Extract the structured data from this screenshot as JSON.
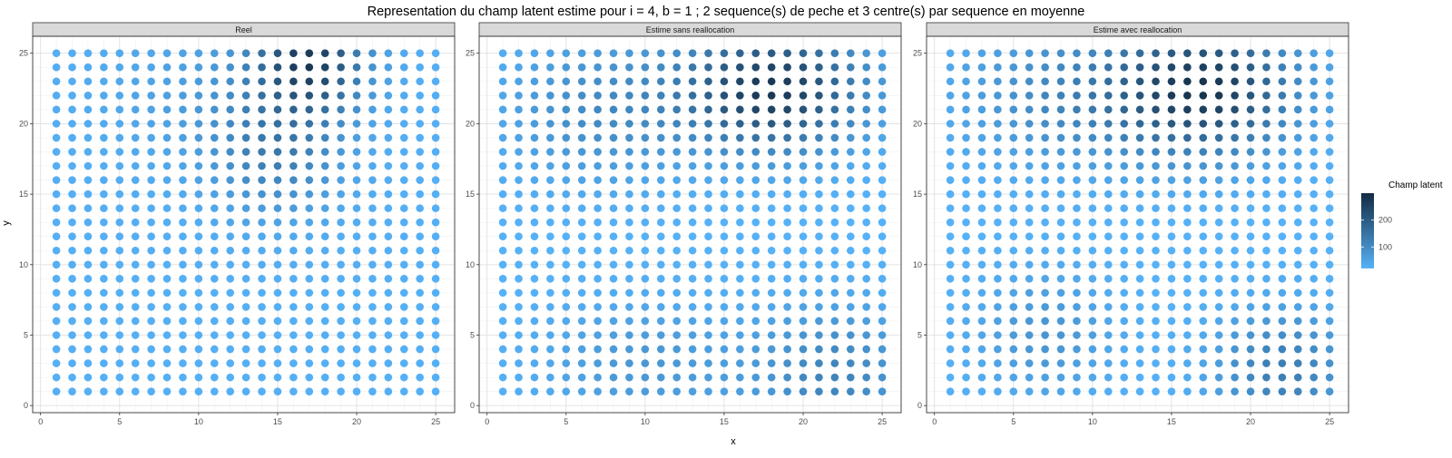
{
  "chart_data": {
    "type": "scatter",
    "title": "Representation du champ latent estime pour i = 4, b = 1 ; 2 sequence(s) de peche et 3 centre(s) par sequence en moyenne",
    "xlabel": "x",
    "ylabel": "y",
    "xlim": [
      -0.5,
      26.2
    ],
    "ylim": [
      -0.5,
      26.2
    ],
    "x_ticks": [
      0,
      5,
      10,
      15,
      20,
      25
    ],
    "y_ticks": [
      0,
      5,
      10,
      15,
      20,
      25
    ],
    "grid": true,
    "x_grid": {
      "min": 1,
      "max": 25,
      "step": 1
    },
    "y_grid": {
      "min": 1,
      "max": 25,
      "step": 1
    },
    "color_scale": {
      "low": "#56B1F7",
      "high": "#132B43",
      "min": 20,
      "max": 300
    },
    "legend": {
      "title": "Champ latent",
      "ticks": [
        100,
        200
      ],
      "position": "right"
    },
    "panels": [
      {
        "name": "Reel",
        "fields": [
          {
            "cx": 17,
            "cy": 24.5,
            "sx": 2.4,
            "sy": 2.6,
            "amp": 230
          },
          {
            "cx": 15,
            "cy": 18,
            "sx": 2.8,
            "sy": 3.0,
            "amp": 95
          },
          {
            "cx": 11,
            "cy": 22,
            "sx": 4.5,
            "sy": 3.5,
            "amp": 35
          }
        ],
        "base": 25
      },
      {
        "name": "Estime sans reallocation",
        "fields": [
          {
            "cx": 18,
            "cy": 22.5,
            "sx": 4.0,
            "sy": 3.0,
            "amp": 255
          },
          {
            "cx": 22,
            "cy": 2,
            "sx": 3.5,
            "sy": 3.5,
            "amp": 95
          },
          {
            "cx": 7,
            "cy": 21,
            "sx": 4.0,
            "sy": 3.5,
            "amp": 80
          },
          {
            "cx": 10,
            "cy": 3,
            "sx": 4.5,
            "sy": 3.0,
            "amp": 55
          }
        ],
        "base": 18
      },
      {
        "name": "Estime avec reallocation",
        "fields": [
          {
            "cx": 17,
            "cy": 22.5,
            "sx": 4.0,
            "sy": 3.2,
            "amp": 255
          },
          {
            "cx": 22,
            "cy": 2.5,
            "sx": 3.0,
            "sy": 3.0,
            "amp": 110
          },
          {
            "cx": 8,
            "cy": 22,
            "sx": 4.5,
            "sy": 3.5,
            "amp": 80
          },
          {
            "cx": 7,
            "cy": 5,
            "sx": 3.0,
            "sy": 3.0,
            "amp": 60
          }
        ],
        "base": 18
      }
    ]
  }
}
